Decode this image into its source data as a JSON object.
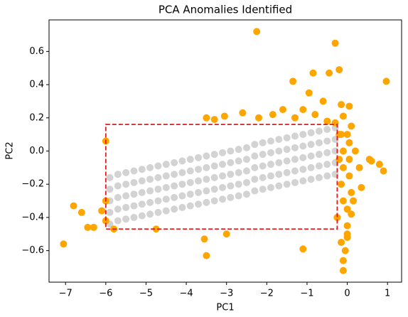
{
  "chart_data": {
    "type": "scatter",
    "title": "PCA Anomalies Identified",
    "xlabel": "PC1",
    "ylabel": "PC2",
    "xlim": [
      -7.41,
      1.35
    ],
    "ylim": [
      -0.79,
      0.79
    ],
    "xticks": [
      {
        "value": -7,
        "label": "−7"
      },
      {
        "value": -6,
        "label": "−6"
      },
      {
        "value": -5,
        "label": "−5"
      },
      {
        "value": -4,
        "label": "−4"
      },
      {
        "value": -3,
        "label": "−3"
      },
      {
        "value": -2,
        "label": "−2"
      },
      {
        "value": -1,
        "label": "−1"
      },
      0,
      1
    ],
    "yticks": [
      {
        "value": -0.6,
        "label": "−0.6"
      },
      {
        "value": -0.4,
        "label": "−0.4"
      },
      {
        "value": -0.2,
        "label": "−0.2"
      },
      {
        "value": 0,
        "label": "0.0"
      },
      0.2,
      0.4,
      0.6
    ],
    "grid": false,
    "series": [
      {
        "color": "#d3d3d3",
        "x": [
          -5.9,
          -5.9,
          -5.9,
          -5.9,
          -5.9,
          -5.7,
          -5.7,
          -5.7,
          -5.7,
          -5.7,
          -5.5,
          -5.5,
          -5.5,
          -5.5,
          -5.5,
          -5.3,
          -5.3,
          -5.3,
          -5.3,
          -5.3,
          -5.1,
          -5.1,
          -5.1,
          -5.1,
          -5.1,
          -4.9,
          -4.9,
          -4.9,
          -4.9,
          -4.9,
          -4.7,
          -4.7,
          -4.7,
          -4.7,
          -4.7,
          -4.5,
          -4.5,
          -4.5,
          -4.5,
          -4.5,
          -4.3,
          -4.3,
          -4.3,
          -4.3,
          -4.3,
          -4.1,
          -4.1,
          -4.1,
          -4.1,
          -4.1,
          -3.9,
          -3.9,
          -3.9,
          -3.9,
          -3.9,
          -3.7,
          -3.7,
          -3.7,
          -3.7,
          -3.7,
          -3.5,
          -3.5,
          -3.5,
          -3.5,
          -3.5,
          -3.3,
          -3.3,
          -3.3,
          -3.3,
          -3.3,
          -3.1,
          -3.1,
          -3.1,
          -3.1,
          -3.1,
          -2.9,
          -2.9,
          -2.9,
          -2.9,
          -2.9,
          -2.7,
          -2.7,
          -2.7,
          -2.7,
          -2.7,
          -2.5,
          -2.5,
          -2.5,
          -2.5,
          -2.5,
          -2.3,
          -2.3,
          -2.3,
          -2.3,
          -2.3,
          -2.1,
          -2.1,
          -2.1,
          -2.1,
          -2.1,
          -1.9,
          -1.9,
          -1.9,
          -1.9,
          -1.9,
          -1.7,
          -1.7,
          -1.7,
          -1.7,
          -1.7,
          -1.5,
          -1.5,
          -1.5,
          -1.5,
          -1.5,
          -1.3,
          -1.3,
          -1.3,
          -1.3,
          -1.3,
          -1.1,
          -1.1,
          -1.1,
          -1.1,
          -1.1,
          -0.9,
          -0.9,
          -0.9,
          -0.9,
          -0.9,
          -0.7,
          -0.7,
          -0.7,
          -0.7,
          -0.7,
          -0.5,
          -0.5,
          -0.5,
          -0.5,
          -0.5,
          -0.3,
          -0.3,
          -0.3,
          -0.3,
          -0.3
        ],
        "y": [
          -0.44,
          -0.37,
          -0.3,
          -0.23,
          -0.16,
          -0.42,
          -0.35,
          -0.28,
          -0.21,
          -0.14,
          -0.41,
          -0.34,
          -0.27,
          -0.2,
          -0.13,
          -0.4,
          -0.33,
          -0.26,
          -0.19,
          -0.12,
          -0.39,
          -0.32,
          -0.25,
          -0.18,
          -0.11,
          -0.38,
          -0.31,
          -0.24,
          -0.17,
          -0.1,
          -0.37,
          -0.3,
          -0.23,
          -0.16,
          -0.09,
          -0.36,
          -0.29,
          -0.22,
          -0.15,
          -0.08,
          -0.35,
          -0.28,
          -0.21,
          -0.14,
          -0.07,
          -0.34,
          -0.27,
          -0.2,
          -0.13,
          -0.06,
          -0.33,
          -0.26,
          -0.19,
          -0.12,
          -0.05,
          -0.32,
          -0.25,
          -0.18,
          -0.11,
          -0.04,
          -0.31,
          -0.24,
          -0.17,
          -0.1,
          -0.03,
          -0.3,
          -0.23,
          -0.16,
          -0.09,
          -0.02,
          -0.29,
          -0.22,
          -0.15,
          -0.08,
          -0.01,
          -0.28,
          -0.21,
          -0.14,
          -0.07,
          0.0,
          -0.27,
          -0.2,
          -0.13,
          -0.06,
          0.01,
          -0.26,
          -0.19,
          -0.12,
          -0.05,
          0.02,
          -0.24,
          -0.17,
          -0.1,
          -0.03,
          0.04,
          -0.23,
          -0.16,
          -0.09,
          -0.02,
          0.05,
          -0.22,
          -0.15,
          -0.08,
          -0.01,
          0.06,
          -0.21,
          -0.14,
          -0.07,
          0.0,
          0.07,
          -0.2,
          -0.13,
          -0.06,
          0.01,
          0.08,
          -0.19,
          -0.12,
          -0.05,
          0.02,
          0.09,
          -0.18,
          -0.11,
          -0.04,
          0.03,
          0.1,
          -0.17,
          -0.1,
          -0.03,
          0.04,
          0.11,
          -0.16,
          -0.09,
          -0.02,
          0.05,
          0.12,
          -0.15,
          -0.08,
          -0.01,
          0.06,
          0.13,
          -0.14,
          -0.07,
          0.0,
          0.07,
          0.14
        ]
      },
      {
        "color": "#ffa500",
        "x": [
          -2.25,
          -0.3,
          0.97,
          -1.35,
          -0.85,
          -0.45,
          -0.2,
          -0.95,
          -0.6,
          -1.1,
          -1.6,
          -1.85,
          -2.6,
          -3.05,
          -3.5,
          -3.3,
          -2.2,
          -1.3,
          -0.8,
          -0.5,
          -0.1,
          0.05,
          0.1,
          0.05,
          0.05,
          0.05,
          0.1,
          0.0,
          0.0,
          -0.1,
          -0.15,
          -0.1,
          -0.15,
          -0.1,
          0.2,
          0.3,
          0.35,
          0.55,
          0.6,
          0.8,
          0.9,
          0.0,
          -0.05,
          -0.1,
          -0.1,
          -0.15,
          0.0,
          -1.1,
          -3.5,
          -3.55,
          -3.0,
          -4.75,
          -5.8,
          -6.0,
          -6.0,
          -6.1,
          -6.3,
          -6.45,
          -6.6,
          -6.8,
          -7.05,
          -6.0,
          -0.2,
          -0.2,
          -0.25,
          0.0,
          -0.3,
          -0.15,
          0.1,
          0.15
        ],
        "y": [
          0.72,
          0.65,
          0.42,
          0.42,
          0.47,
          0.47,
          0.49,
          0.35,
          0.3,
          0.25,
          0.25,
          0.22,
          0.23,
          0.21,
          0.2,
          0.19,
          0.2,
          0.2,
          0.22,
          0.18,
          0.21,
          0.27,
          0.15,
          0.05,
          -0.05,
          -0.15,
          -0.25,
          -0.35,
          -0.45,
          -0.1,
          0.1,
          0.0,
          -0.2,
          -0.3,
          0.0,
          -0.1,
          -0.22,
          -0.05,
          -0.06,
          -0.08,
          -0.12,
          -0.5,
          -0.6,
          -0.66,
          -0.72,
          -0.55,
          -0.52,
          -0.59,
          -0.63,
          -0.53,
          -0.5,
          -0.47,
          -0.47,
          -0.42,
          -0.3,
          -0.36,
          -0.46,
          -0.46,
          -0.37,
          -0.33,
          -0.56,
          0.06,
          0.1,
          -0.05,
          -0.4,
          0.1,
          0.17,
          0.28,
          -0.38,
          -0.3
        ]
      }
    ],
    "annotations": [
      {
        "type": "rect",
        "x": [
          -6,
          -0.25
        ],
        "y": [
          -0.47,
          0.16
        ],
        "color": "#e31a1c"
      }
    ]
  }
}
